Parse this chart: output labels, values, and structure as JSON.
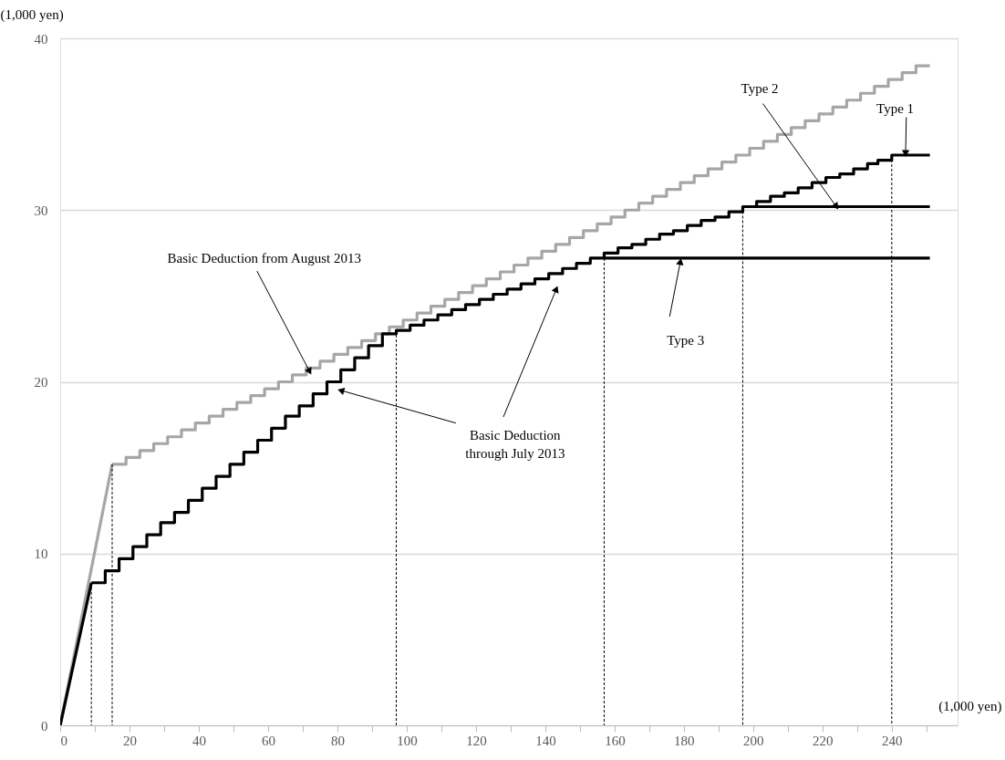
{
  "chart_data": {
    "type": "line",
    "xlabel": "(1,000 yen)",
    "ylabel": "(1,000 yen)",
    "xlim": [
      0,
      259
    ],
    "ylim": [
      0,
      40
    ],
    "xticks": [
      0,
      {
        "value": 10,
        "label": null
      },
      20,
      {
        "value": 30,
        "label": null
      },
      40,
      {
        "value": 50,
        "label": null
      },
      60,
      {
        "value": 70,
        "label": null
      },
      80,
      {
        "value": 90,
        "label": null
      },
      100,
      {
        "value": 110,
        "label": null
      },
      120,
      {
        "value": 130,
        "label": null
      },
      140,
      {
        "value": 150,
        "label": null
      },
      160,
      {
        "value": 170,
        "label": null
      },
      180,
      {
        "value": 190,
        "label": null
      },
      200,
      {
        "value": 210,
        "label": null
      },
      220,
      {
        "value": 230,
        "label": null
      },
      240,
      {
        "value": 250,
        "label": null
      }
    ],
    "yticks": [
      0,
      10,
      20,
      30,
      40
    ],
    "grid": "y",
    "series": [
      {
        "color": "#a6a6a6",
        "line_style": "solid",
        "x": [
          0,
          15
        ],
        "values": [
          0,
          15.2
        ]
      },
      {
        "type": "step",
        "color": "#a6a6a6",
        "line_style": "solid",
        "x": [
          15,
          19,
          23,
          27,
          31,
          35,
          39,
          43,
          47,
          51,
          55,
          59,
          63,
          67,
          71,
          75,
          79,
          83,
          87,
          91,
          95,
          99,
          103,
          107,
          111,
          115,
          119,
          123,
          127,
          131,
          135,
          139,
          143,
          147,
          151,
          155,
          159,
          163,
          167,
          171,
          175,
          179,
          183,
          187,
          191,
          195,
          199,
          203,
          207,
          211,
          215,
          219,
          223,
          227,
          231,
          235,
          239,
          243,
          247,
          251
        ],
        "values": [
          15.2,
          15.6,
          16.0,
          16.4,
          16.8,
          17.2,
          17.6,
          18.0,
          18.4,
          18.8,
          19.2,
          19.6,
          20.0,
          20.4,
          20.8,
          21.2,
          21.6,
          22.0,
          22.4,
          22.8,
          23.2,
          23.6,
          24.0,
          24.4,
          24.8,
          25.2,
          25.6,
          26.0,
          26.4,
          26.8,
          27.2,
          27.6,
          28.0,
          28.4,
          28.8,
          29.2,
          29.6,
          30.0,
          30.4,
          30.8,
          31.2,
          31.6,
          32.0,
          32.4,
          32.8,
          33.2,
          33.6,
          34.0,
          34.4,
          34.8,
          35.2,
          35.6,
          36.0,
          36.4,
          36.8,
          37.2,
          37.6,
          38.0,
          38.4,
          38.4
        ]
      },
      {
        "color": "#000000",
        "line_style": "solid",
        "x": [
          0,
          9
        ],
        "values": [
          0,
          8.3
        ]
      },
      {
        "color": "#000000",
        "line_style": "solid",
        "x": [
          157,
          251
        ],
        "values": [
          27.2,
          27.2
        ]
      },
      {
        "color": "#000000",
        "line_style": "solid",
        "x": [
          197,
          251
        ],
        "values": [
          30.2,
          30.2
        ]
      },
      {
        "color": "#000000",
        "line_style": "dashed",
        "x": [
          9,
          9
        ],
        "values": [
          8.3,
          0
        ]
      },
      {
        "color": "#000000",
        "line_style": "dashed",
        "x": [
          15,
          15
        ],
        "values": [
          15.2,
          0
        ]
      },
      {
        "color": "#000000",
        "line_style": "dashed",
        "x": [
          97,
          97
        ],
        "values": [
          23.0,
          0
        ]
      },
      {
        "color": "#000000",
        "line_style": "dashed",
        "x": [
          157,
          157
        ],
        "values": [
          27.2,
          0
        ]
      },
      {
        "color": "#000000",
        "line_style": "dashed",
        "x": [
          197,
          197
        ],
        "values": [
          30.2,
          0
        ]
      },
      {
        "color": "#000000",
        "line_style": "dashed",
        "x": [
          240,
          240
        ],
        "values": [
          33.2,
          0
        ]
      },
      {
        "type": "step",
        "color": "#000000",
        "line_style": "solid",
        "x": [
          9,
          13,
          17,
          21,
          25,
          29,
          33,
          37,
          41,
          45,
          49,
          53,
          57,
          61,
          65,
          69,
          73,
          77,
          81,
          85,
          89,
          93,
          97,
          101,
          105,
          109,
          113,
          117,
          121,
          125,
          129,
          133,
          137,
          141,
          145,
          149,
          153,
          157,
          161,
          165,
          169,
          173,
          177,
          181,
          185,
          189,
          193,
          197,
          201,
          205,
          209,
          213,
          217,
          221,
          225,
          229,
          233,
          236,
          240,
          251
        ],
        "values": [
          8.3,
          9.0,
          9.7,
          10.4,
          11.1,
          11.8,
          12.4,
          13.1,
          13.8,
          14.5,
          15.2,
          15.9,
          16.6,
          17.3,
          18.0,
          18.6,
          19.3,
          20.0,
          20.7,
          21.4,
          22.1,
          22.8,
          23.0,
          23.3,
          23.6,
          23.9,
          24.2,
          24.5,
          24.8,
          25.1,
          25.4,
          25.7,
          26.0,
          26.3,
          26.6,
          26.9,
          27.2,
          27.5,
          27.8,
          28.0,
          28.3,
          28.6,
          28.8,
          29.1,
          29.4,
          29.6,
          29.9,
          30.2,
          30.5,
          30.8,
          31.0,
          31.3,
          31.6,
          31.9,
          32.1,
          32.4,
          32.7,
          32.9,
          33.2,
          33.2
        ]
      }
    ],
    "annotations": [
      {
        "text": "Basic Deduction from August 2013",
        "x": 72,
        "y": 20.6
      },
      {
        "text": "Basic Deduction through July 2013",
        "x": 81,
        "y": 19.5
      },
      {
        "text": "Type 3",
        "x": 179,
        "y": 27.0
      },
      {
        "text": "Type 2",
        "x": 224,
        "y": 30.2
      },
      {
        "text": "Type 1",
        "x": 244,
        "y": 33.3
      }
    ]
  }
}
